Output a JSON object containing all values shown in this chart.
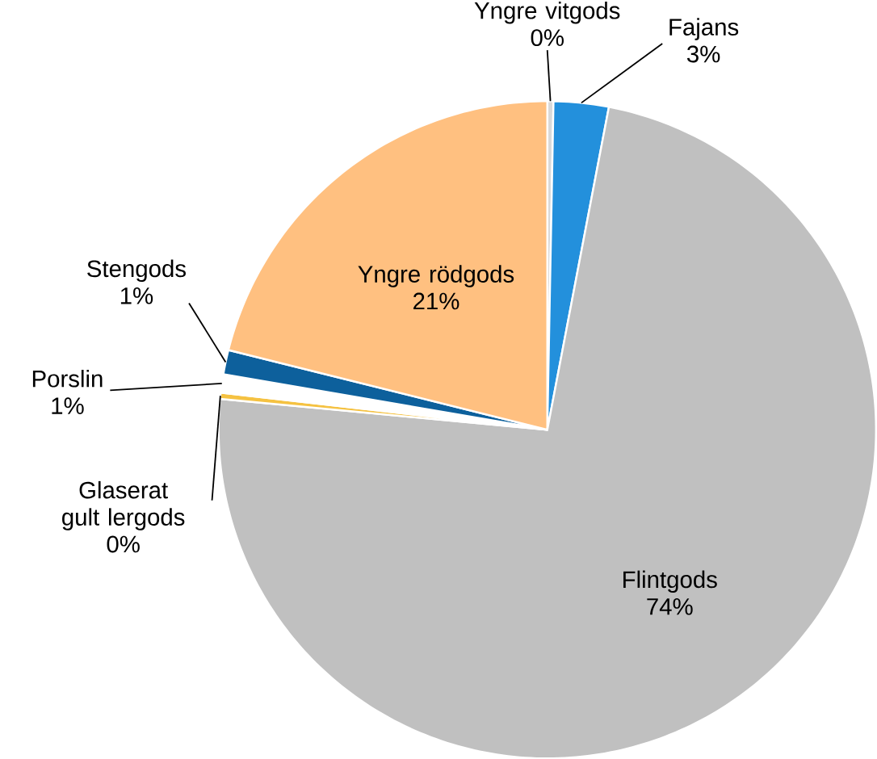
{
  "chart_data": {
    "type": "pie",
    "categories": [
      "Yngre vitgods",
      "Fajans",
      "Flintgods",
      "Glaserat gult lergods",
      "Porslin",
      "Stengods",
      "Yngre rödgods"
    ],
    "values": [
      0.3,
      2.7,
      73.5,
      0.3,
      0.9,
      1.2,
      21.1
    ],
    "value_labels": [
      "0%",
      "3%",
      "74%",
      "0%",
      "1%",
      "1%",
      "21%"
    ],
    "colors": [
      "#d9d9d9",
      "#2390dc",
      "#c0c0c0",
      "#f5c242",
      "#ffffff",
      "#0d609c",
      "#ffc080"
    ]
  }
}
